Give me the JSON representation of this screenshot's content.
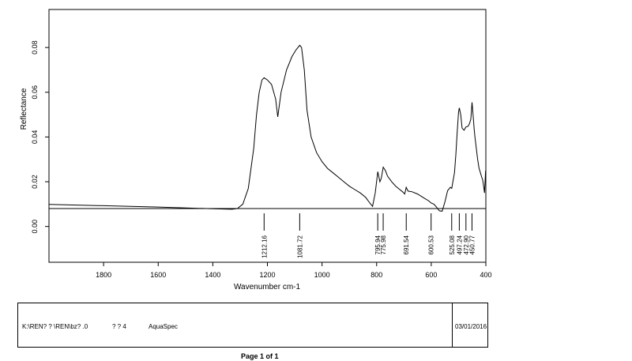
{
  "chart_data": {
    "type": "line",
    "xlabel": "Wavenumber cm-1",
    "ylabel": "Reflectance",
    "xlim": [
      2000,
      400
    ],
    "ylim": [
      -0.016,
      0.097
    ],
    "x_reversed": true,
    "grid": false,
    "x_ticks": [
      {
        "value": 1800,
        "label": "1800"
      },
      {
        "value": 1600,
        "label": "1600"
      },
      {
        "value": 1400,
        "label": "1400"
      },
      {
        "value": 1200,
        "label": "1200"
      },
      {
        "value": 1000,
        "label": "1000"
      },
      {
        "value": 800,
        "label": "800"
      },
      {
        "value": 600,
        "label": "600"
      },
      {
        "value": 400,
        "label": "400"
      }
    ],
    "y_ticks": [
      {
        "value": 0.0,
        "label": "0.00"
      },
      {
        "value": 0.02,
        "label": "0.02"
      },
      {
        "value": 0.04,
        "label": "0.04"
      },
      {
        "value": 0.06,
        "label": "0.06"
      },
      {
        "value": 0.08,
        "label": "0.08"
      }
    ],
    "series": [
      {
        "x": [
          2000,
          1800,
          1600,
          1400,
          1330,
          1310,
          1290,
          1270,
          1250,
          1240,
          1230,
          1220,
          1212.16,
          1200,
          1185,
          1170,
          1162,
          1150,
          1130,
          1110,
          1095,
          1081.72,
          1075,
          1065,
          1055,
          1040,
          1020,
          1000,
          980,
          960,
          940,
          920,
          900,
          880,
          860,
          840,
          825,
          815,
          805,
          795.94,
          788,
          783,
          775.98,
          768,
          760,
          745,
          730,
          715,
          705,
          697,
          691.54,
          685,
          670,
          650,
          630,
          610,
          600.53,
          590,
          580,
          570,
          560,
          550,
          540,
          530,
          525.08,
          515,
          510,
          505,
          500,
          497.24,
          492,
          487,
          480,
          472.9,
          465,
          460,
          455,
          450.77,
          447,
          443,
          440,
          435,
          430,
          425,
          420,
          415,
          412,
          408,
          405,
          403,
          401,
          400
        ],
        "y": [
          0.0099,
          0.0093,
          0.0087,
          0.0079,
          0.0077,
          0.008,
          0.01,
          0.017,
          0.035,
          0.05,
          0.06,
          0.0655,
          0.0665,
          0.0655,
          0.0635,
          0.057,
          0.049,
          0.06,
          0.07,
          0.076,
          0.079,
          0.081,
          0.08,
          0.07,
          0.052,
          0.04,
          0.033,
          0.029,
          0.026,
          0.024,
          0.022,
          0.02,
          0.018,
          0.0165,
          0.015,
          0.013,
          0.0105,
          0.009,
          0.015,
          0.0245,
          0.02,
          0.0215,
          0.0265,
          0.025,
          0.0225,
          0.02,
          0.018,
          0.0165,
          0.0155,
          0.0145,
          0.0175,
          0.0158,
          0.0155,
          0.0145,
          0.013,
          0.0115,
          0.0105,
          0.01,
          0.0085,
          0.007,
          0.0068,
          0.011,
          0.016,
          0.0175,
          0.017,
          0.024,
          0.032,
          0.042,
          0.051,
          0.053,
          0.05,
          0.044,
          0.043,
          0.0445,
          0.0448,
          0.046,
          0.048,
          0.0555,
          0.05,
          0.044,
          0.04,
          0.035,
          0.03,
          0.026,
          0.024,
          0.022,
          0.021,
          0.018,
          0.015,
          0.02,
          0.025,
          0.023
        ]
      }
    ],
    "peak_labels": [
      {
        "x": 1212.16,
        "label": "1212.16"
      },
      {
        "x": 1081.72,
        "label": "1081.72"
      },
      {
        "x": 795.94,
        "label": "795.94"
      },
      {
        "x": 775.98,
        "label": "775.98"
      },
      {
        "x": 691.54,
        "label": "691.54"
      },
      {
        "x": 600.53,
        "label": "600.53"
      },
      {
        "x": 525.08,
        "label": "525.08"
      },
      {
        "x": 497.24,
        "label": "497.24"
      },
      {
        "x": 472.9,
        "label": "472.90"
      },
      {
        "x": 450.77,
        "label": "450.77"
      }
    ]
  },
  "info": {
    "path": "K:\\REN? ? \\REN\\bz? .0",
    "codes": "? ? 4",
    "software": "AquaSpec",
    "date": "03/01/2016"
  },
  "footer": {
    "page_label": "Page 1 of 1"
  }
}
